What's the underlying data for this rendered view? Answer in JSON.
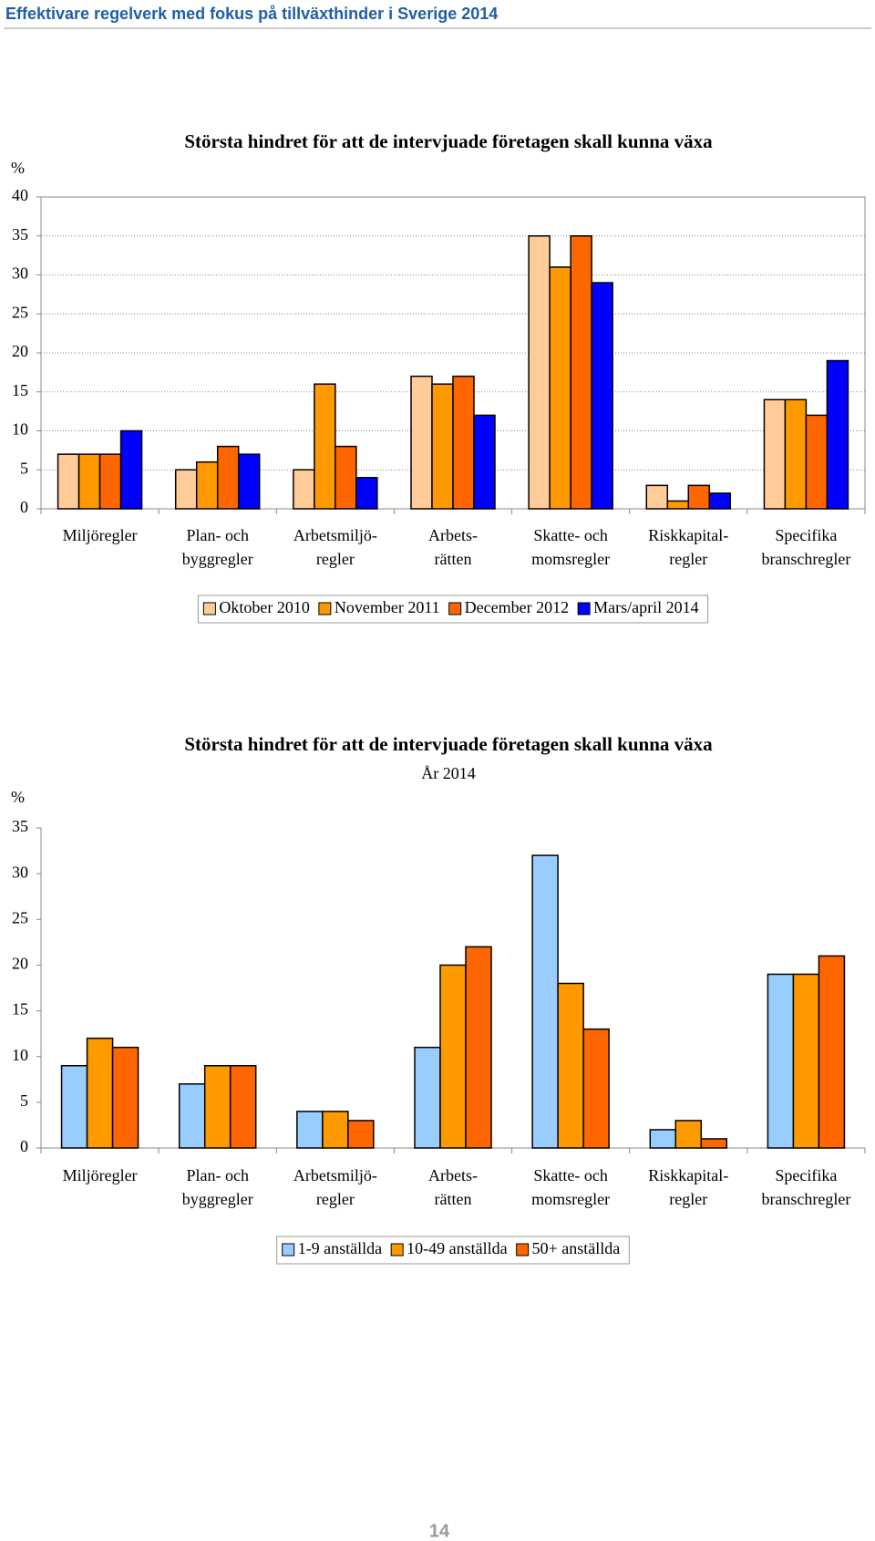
{
  "header": {
    "title": "Effektivare regelverk med fokus på tillväxthinder i Sverige 2014"
  },
  "page_number": "14",
  "chart_data": [
    {
      "type": "bar",
      "title": "Största hindret för att de intervjuade företagen skall kunna växa",
      "y_label": "%",
      "categories": [
        "Miljöregler",
        "Plan- och\nbyggregler",
        "Arbetsmiljö-\nregler",
        "Arbets-\nrätten",
        "Skatte- och\nmomsregler",
        "Riskkapital-\nregler",
        "Specifika\nbranschregler"
      ],
      "series": [
        {
          "name": "Oktober 2010",
          "color": "#ffcc99",
          "values": [
            7,
            5,
            5,
            17,
            35,
            3,
            14
          ]
        },
        {
          "name": "November 2011",
          "color": "#ff9900",
          "values": [
            7,
            6,
            16,
            16,
            31,
            1,
            14
          ]
        },
        {
          "name": "December 2012",
          "color": "#ff6600",
          "values": [
            7,
            8,
            8,
            17,
            35,
            3,
            12
          ]
        },
        {
          "name": "Mars/april 2014",
          "color": "#0000ff",
          "values": [
            10,
            7,
            4,
            12,
            29,
            2,
            19
          ]
        }
      ],
      "ylim": [
        0,
        40
      ],
      "yticks": [
        0,
        5,
        10,
        15,
        20,
        25,
        30,
        35,
        40
      ],
      "grid": true,
      "legend": "bottom"
    },
    {
      "type": "bar",
      "title": "Största hindret för att de intervjuade företagen skall kunna växa",
      "subtitle": "År 2014",
      "y_label": "%",
      "categories": [
        "Miljöregler",
        "Plan- och\nbyggregler",
        "Arbetsmiljö-\nregler",
        "Arbets-\nrätten",
        "Skatte- och\nmomsregler",
        "Riskkapital-\nregler",
        "Specifika\nbranschregler"
      ],
      "series": [
        {
          "name": "1-9 anställda",
          "color": "#99ccff",
          "values": [
            9,
            7,
            4,
            11,
            32,
            2,
            19
          ]
        },
        {
          "name": "10-49 anställda",
          "color": "#ff9900",
          "values": [
            12,
            9,
            4,
            20,
            18,
            3,
            19
          ]
        },
        {
          "name": "50+ anställda",
          "color": "#ff6600",
          "values": [
            11,
            9,
            3,
            22,
            13,
            1,
            21
          ]
        }
      ],
      "ylim": [
        0,
        35
      ],
      "yticks": [
        0,
        5,
        10,
        15,
        20,
        25,
        30,
        35
      ],
      "grid": false,
      "legend": "bottom"
    }
  ]
}
